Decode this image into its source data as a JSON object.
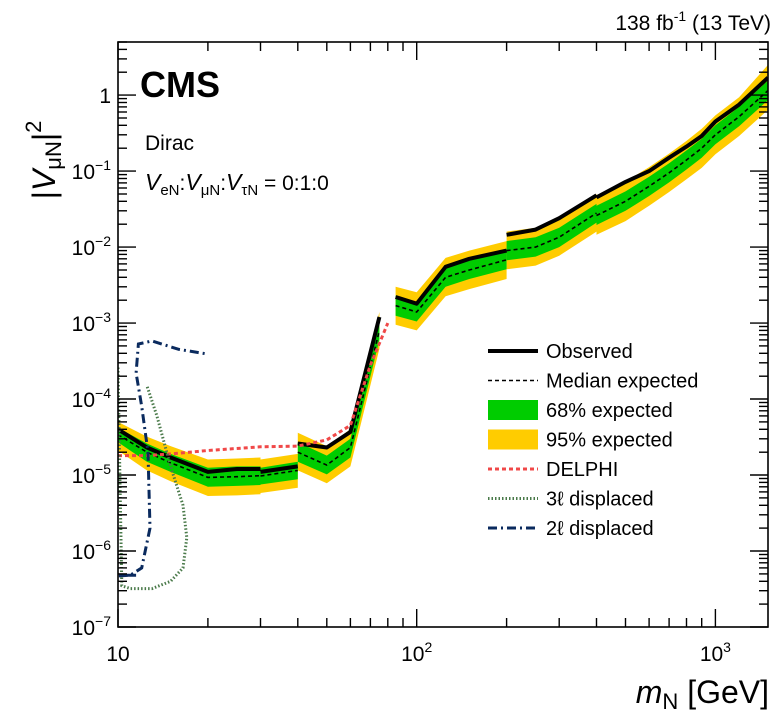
{
  "chart_data": {
    "type": "line",
    "title": "",
    "header_right": {
      "lumi": "138 fb",
      "lumi_exp": "-1",
      "energy": " (13 TeV)"
    },
    "experiment": "CMS",
    "model": "Dirac",
    "coupling_text": {
      "v": "V",
      "e_sub": "eN",
      "mu_sub": "μN",
      "tau_sub": "τN",
      "sep": ":",
      "eq": " = 0:1:0"
    },
    "xlabel": {
      "m": "m",
      "sub": "N",
      "unit": " [GeV]"
    },
    "ylabel": {
      "left": "|",
      "v": "V",
      "sub": "μN",
      "right": "|",
      "pow": "2"
    },
    "xscale": "log",
    "yscale": "log",
    "xlim": [
      10,
      1500
    ],
    "ylim": [
      1e-07,
      5
    ],
    "xticks": [
      {
        "value": 10,
        "base": "10",
        "exp": ""
      },
      {
        "value": 100,
        "base": "10",
        "exp": "2"
      },
      {
        "value": 1000,
        "base": "10",
        "exp": "3"
      }
    ],
    "yticks": [
      {
        "value": 1e-07,
        "base": "10",
        "exp": "−7"
      },
      {
        "value": 1e-06,
        "base": "10",
        "exp": "−6"
      },
      {
        "value": 1e-05,
        "base": "10",
        "exp": "−5"
      },
      {
        "value": 0.0001,
        "base": "10",
        "exp": "−4"
      },
      {
        "value": 0.001,
        "base": "10",
        "exp": "−3"
      },
      {
        "value": 0.01,
        "base": "10",
        "exp": "−2"
      },
      {
        "value": 0.1,
        "base": "10",
        "exp": "−1"
      },
      {
        "value": 1,
        "base": "1",
        "exp": ""
      }
    ],
    "legend": {
      "placement": "center-right",
      "entries": [
        {
          "key": "observed",
          "label": "Observed"
        },
        {
          "key": "expected",
          "label": "Median expected"
        },
        {
          "key": "band68",
          "label": "68% expected"
        },
        {
          "key": "band95",
          "label": "95% expected"
        },
        {
          "key": "delphi",
          "label": "DELPHI"
        },
        {
          "key": "disp3l",
          "label": "3ℓ displaced"
        },
        {
          "key": "disp2l",
          "label": "2ℓ displaced"
        }
      ]
    },
    "colors": {
      "observed": "#000000",
      "expected": "#000000",
      "band68": "#00cc00",
      "band95": "#ffcc00",
      "delphi": "#f04848",
      "disp3l": "#4a7a4a",
      "disp2l": "#0a2a5e"
    },
    "segments": [
      {
        "x": [
          10,
          12.5,
          15,
          20,
          25,
          30
        ],
        "observed": [
          4e-05,
          2.3e-05,
          1.7e-05,
          1.1e-05,
          1.2e-05,
          1.2e-05
        ],
        "expected": [
          3.4e-05,
          2e-05,
          1.45e-05,
          9.3e-06,
          9.5e-06,
          9.8e-06
        ],
        "band68_lo": [
          2.7e-05,
          1.5e-05,
          1.1e-05,
          7e-06,
          7.2e-06,
          7.4e-06
        ],
        "band68_hi": [
          4.2e-05,
          2.6e-05,
          1.9e-05,
          1.25e-05,
          1.3e-05,
          1.3e-05
        ],
        "band95_lo": [
          2.1e-05,
          1.15e-05,
          8.3e-06,
          5.3e-06,
          5.4e-06,
          5.6e-06
        ],
        "band95_hi": [
          5e-05,
          3.2e-05,
          2.4e-05,
          1.6e-05,
          1.65e-05,
          1.7e-05
        ]
      },
      {
        "x": [
          30,
          40
        ],
        "observed": [
          1.1e-05,
          1.3e-05
        ],
        "expected": [
          9.7e-06,
          1.15e-05
        ],
        "band68_lo": [
          7.5e-06,
          8.8e-06
        ],
        "band68_hi": [
          1.25e-05,
          1.5e-05
        ],
        "band95_lo": [
          5.8e-06,
          6.8e-06
        ],
        "band95_hi": [
          1.6e-05,
          1.9e-05
        ]
      },
      {
        "x": [
          40,
          50,
          60,
          75
        ],
        "observed": [
          2.6e-05,
          2.3e-05,
          3.7e-05,
          0.0012
        ],
        "expected": [
          2e-05,
          1.35e-05,
          2.3e-05,
          0.0008
        ],
        "band68_lo": [
          1.5e-05,
          1.02e-05,
          1.7e-05,
          0.0006
        ],
        "band68_hi": [
          2.7e-05,
          1.8e-05,
          3e-05,
          0.00106
        ],
        "band95_lo": [
          1.15e-05,
          7.8e-06,
          1.3e-05,
          0.00046
        ],
        "band95_hi": [
          3.6e-05,
          2.4e-05,
          4e-05,
          0.0014
        ]
      },
      {
        "x": [
          85,
          100,
          125,
          150,
          200
        ],
        "observed": [
          0.0022,
          0.0018,
          0.0055,
          0.007,
          0.009
        ],
        "expected": [
          0.0017,
          0.0014,
          0.004,
          0.005,
          0.0068
        ],
        "band68_lo": [
          0.00125,
          0.00105,
          0.003,
          0.0038,
          0.0051
        ],
        "band68_hi": [
          0.0023,
          0.0019,
          0.0054,
          0.0067,
          0.0091
        ],
        "band95_lo": [
          0.00095,
          0.0008,
          0.00225,
          0.0028,
          0.0038
        ],
        "band95_hi": [
          0.003,
          0.00255,
          0.0072,
          0.009,
          0.012
        ]
      },
      {
        "x": [
          200,
          250,
          300,
          400
        ],
        "observed": [
          0.0145,
          0.017,
          0.024,
          0.048
        ],
        "expected": [
          0.009,
          0.01,
          0.0135,
          0.028
        ],
        "band68_lo": [
          0.0067,
          0.0075,
          0.01,
          0.021
        ],
        "band68_hi": [
          0.012,
          0.0135,
          0.018,
          0.037
        ],
        "band95_lo": [
          0.0051,
          0.0057,
          0.0077,
          0.016
        ],
        "band95_hi": [
          0.016,
          0.018,
          0.024,
          0.05
        ]
      },
      {
        "x": [
          400,
          500,
          600,
          700,
          800,
          900,
          1000,
          1200,
          1500
        ],
        "observed": [
          0.045,
          0.072,
          0.1,
          0.15,
          0.21,
          0.29,
          0.45,
          0.75,
          1.7
        ],
        "expected": [
          0.026,
          0.04,
          0.063,
          0.095,
          0.14,
          0.2,
          0.3,
          0.52,
          1.15
        ],
        "band68_lo": [
          0.0195,
          0.03,
          0.047,
          0.071,
          0.105,
          0.15,
          0.225,
          0.39,
          0.86
        ],
        "band68_hi": [
          0.035,
          0.054,
          0.084,
          0.127,
          0.187,
          0.267,
          0.4,
          0.7,
          1.55
        ],
        "band95_lo": [
          0.0145,
          0.022,
          0.035,
          0.053,
          0.078,
          0.11,
          0.167,
          0.29,
          0.64
        ],
        "band95_hi": [
          0.047,
          0.073,
          0.113,
          0.17,
          0.25,
          0.36,
          0.54,
          0.94,
          2.5
        ]
      }
    ],
    "delphi": {
      "x": [
        10,
        12.5,
        15,
        20,
        30,
        40,
        50,
        60,
        70,
        80
      ],
      "y": [
        1.8e-05,
        1.8e-05,
        1.9e-05,
        2.1e-05,
        2.35e-05,
        2.4e-05,
        2.9e-05,
        4.5e-05,
        0.00028,
        0.001
      ]
    },
    "disp3l": {
      "x": [
        10,
        10.3,
        11,
        13,
        15,
        16.5,
        17,
        16.5,
        15,
        13.5,
        12.5
      ],
      "y": [
        0.00026,
        3.5e-07,
        3.2e-07,
        3.2e-07,
        4e-07,
        6e-07,
        1.5e-06,
        4e-06,
        1.3e-05,
        6e-05,
        0.00015
      ]
    },
    "disp2l": {
      "x": [
        11.5,
        10.2,
        10,
        11,
        12,
        12.8,
        12.6,
        12,
        11.5,
        11.7,
        13,
        16,
        20
      ],
      "y": [
        4.8e-07,
        4.8e-07,
        4.7e-07,
        4.8e-07,
        6e-07,
        2e-06,
        2e-05,
        8e-05,
        0.00022,
        0.00053,
        0.00058,
        0.00045,
        0.00039
      ]
    }
  }
}
